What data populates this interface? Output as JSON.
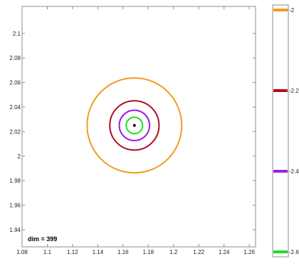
{
  "chart_data": [
    {
      "type": "scatter",
      "title": "",
      "xlabel": "",
      "ylabel": "",
      "xlim": [
        1.08,
        1.265
      ],
      "ylim": [
        1.926,
        2.122
      ],
      "x_ticks": [
        "1.08",
        "1.1",
        "1.12",
        "1.14",
        "1.16",
        "1.18",
        "1.2",
        "1.22",
        "1.24",
        "1.26"
      ],
      "y_ticks": [
        "1.94",
        "1.96",
        "1.98",
        "2",
        "2.02",
        "2.04",
        "2.06",
        "2.08",
        "2.1"
      ],
      "grid": false,
      "center": {
        "x": 1.169,
        "y": 2.025
      },
      "annotation": "dim = 399",
      "contours": [
        {
          "level": -2,
          "color": "#f39c1e",
          "radius": 0.0375
        },
        {
          "level": -2.2,
          "color": "#b20b20",
          "radius": 0.0195
        },
        {
          "level": -2.4,
          "color": "#9b1ee6",
          "radius": 0.012
        },
        {
          "level": -2.6,
          "color": "#22dd22",
          "radius": 0.0065
        }
      ]
    },
    {
      "type": "colorbar",
      "ylim": [
        -2.6,
        -2
      ],
      "ticks": [
        "-2",
        "-2.2",
        "-2.4",
        "-2.6"
      ],
      "lines": [
        {
          "value": -2,
          "color": "#f39c1e"
        },
        {
          "value": -2.2,
          "color": "#b20b20"
        },
        {
          "value": -2.4,
          "color": "#9b1ee6"
        },
        {
          "value": -2.6,
          "color": "#22dd22"
        }
      ]
    }
  ]
}
